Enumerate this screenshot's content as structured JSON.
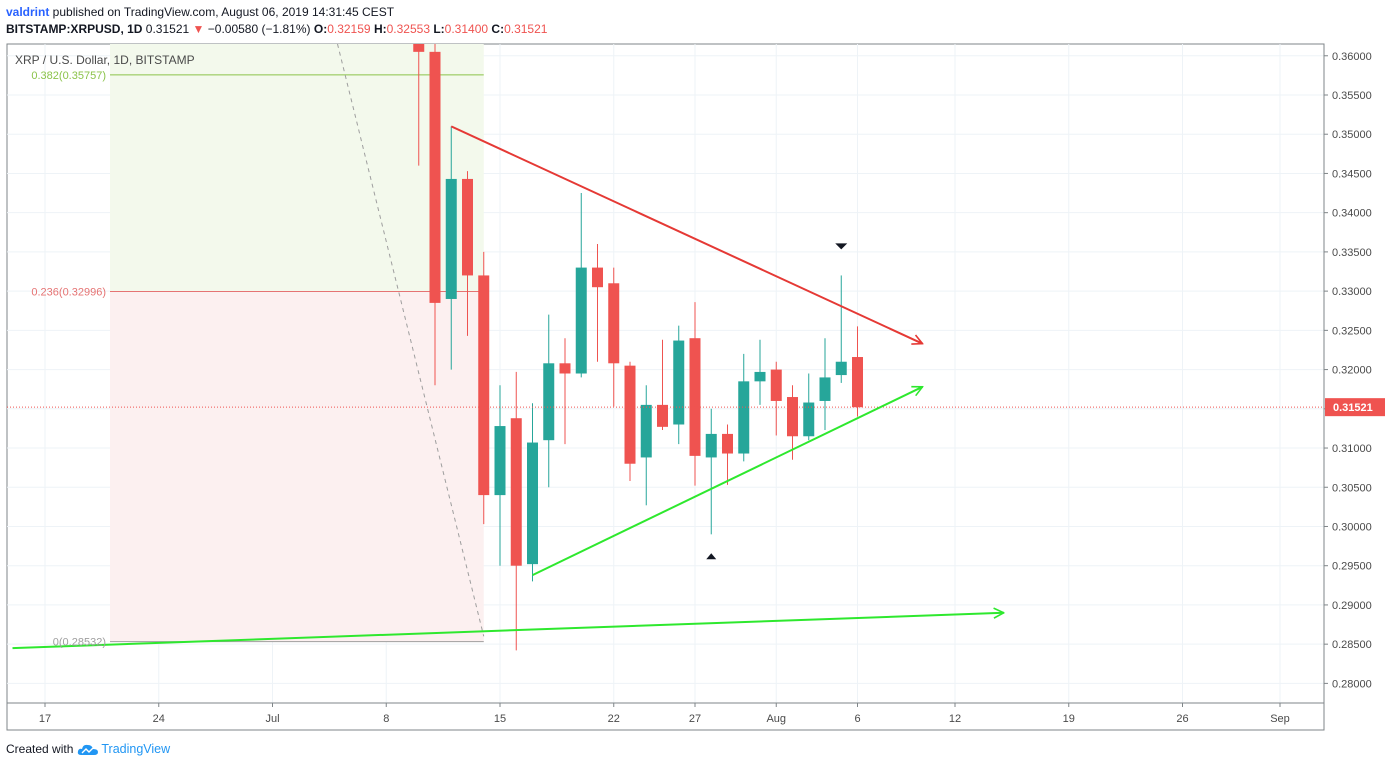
{
  "header": {
    "author": "valdrint",
    "published_text": " published on TradingView.com, August 06, 2019 14:31:45 CEST",
    "symbol": "BITSTAMP:XRPUSD, 1D",
    "last": "0.31521",
    "change": "−0.00580 (−1.81%)",
    "open_label": "O:",
    "open": "0.32159",
    "high_label": "H:",
    "high": "0.32553",
    "low_label": "L:",
    "low": "0.31400",
    "close_label": "C:",
    "close": "0.31521"
  },
  "footer": {
    "created_with": "Created with",
    "brand": "TradingView"
  },
  "colors": {
    "up": "#26a69a",
    "down": "#ef5350",
    "resistance": "#e53935",
    "support": "#2ee82e",
    "fib_top_fill": "#f3f9ec",
    "fib_bottom_fill": "#fcf0f0",
    "fib_382": "#8bc34a",
    "fib_236": "#e57373",
    "grid": "#eef3f7"
  },
  "chart_data": {
    "type": "candlestick",
    "title": "XRP / U.S. Dollar, 1D, BITSTAMP",
    "y_range": [
      0.2775,
      0.3615
    ],
    "y_ticks": [
      "0.36000",
      "0.35500",
      "0.35000",
      "0.34500",
      "0.34000",
      "0.33500",
      "0.33000",
      "0.32500",
      "0.32000",
      "0.31500",
      "0.31000",
      "0.30500",
      "0.30000",
      "0.29500",
      "0.29000",
      "0.28500",
      "0.28000"
    ],
    "x_ticks": [
      {
        "label": "17",
        "date": "2019-06-17"
      },
      {
        "label": "24",
        "date": "2019-06-24"
      },
      {
        "label": "Jul",
        "date": "2019-07-01"
      },
      {
        "label": "8",
        "date": "2019-07-08"
      },
      {
        "label": "15",
        "date": "2019-07-15"
      },
      {
        "label": "22",
        "date": "2019-07-22"
      },
      {
        "label": "27",
        "date": "2019-07-27"
      },
      {
        "label": "Aug",
        "date": "2019-08-01"
      },
      {
        "label": "6",
        "date": "2019-08-06"
      },
      {
        "label": "12",
        "date": "2019-08-12"
      },
      {
        "label": "19",
        "date": "2019-08-19"
      },
      {
        "label": "26",
        "date": "2019-08-26"
      },
      {
        "label": "Sep",
        "date": "2019-09-01"
      }
    ],
    "candles": [
      {
        "date": "2019-07-10",
        "o": 0.3705,
        "h": 0.374,
        "l": 0.346,
        "c": 0.3605
      },
      {
        "date": "2019-07-11",
        "o": 0.3605,
        "h": 0.365,
        "l": 0.318,
        "c": 0.3285
      },
      {
        "date": "2019-07-12",
        "o": 0.329,
        "h": 0.351,
        "l": 0.32,
        "c": 0.3443
      },
      {
        "date": "2019-07-13",
        "o": 0.3443,
        "h": 0.3453,
        "l": 0.3243,
        "c": 0.332
      },
      {
        "date": "2019-07-14",
        "o": 0.332,
        "h": 0.335,
        "l": 0.3003,
        "c": 0.304
      },
      {
        "date": "2019-07-15",
        "o": 0.304,
        "h": 0.318,
        "l": 0.295,
        "c": 0.3128
      },
      {
        "date": "2019-07-16",
        "o": 0.3138,
        "h": 0.3197,
        "l": 0.2842,
        "c": 0.295
      },
      {
        "date": "2019-07-17",
        "o": 0.2952,
        "h": 0.3157,
        "l": 0.293,
        "c": 0.3107
      },
      {
        "date": "2019-07-18",
        "o": 0.311,
        "h": 0.327,
        "l": 0.305,
        "c": 0.3208
      },
      {
        "date": "2019-07-19",
        "o": 0.3208,
        "h": 0.324,
        "l": 0.3105,
        "c": 0.3195
      },
      {
        "date": "2019-07-20",
        "o": 0.3195,
        "h": 0.3425,
        "l": 0.319,
        "c": 0.333
      },
      {
        "date": "2019-07-21",
        "o": 0.333,
        "h": 0.336,
        "l": 0.321,
        "c": 0.3305
      },
      {
        "date": "2019-07-22",
        "o": 0.331,
        "h": 0.333,
        "l": 0.3153,
        "c": 0.3208
      },
      {
        "date": "2019-07-23",
        "o": 0.3205,
        "h": 0.321,
        "l": 0.3058,
        "c": 0.308
      },
      {
        "date": "2019-07-24",
        "o": 0.3088,
        "h": 0.318,
        "l": 0.3027,
        "c": 0.3155
      },
      {
        "date": "2019-07-25",
        "o": 0.3155,
        "h": 0.3238,
        "l": 0.3123,
        "c": 0.3127
      },
      {
        "date": "2019-07-26",
        "o": 0.313,
        "h": 0.3256,
        "l": 0.3105,
        "c": 0.3237
      },
      {
        "date": "2019-07-27",
        "o": 0.324,
        "h": 0.3286,
        "l": 0.3052,
        "c": 0.309
      },
      {
        "date": "2019-07-28",
        "o": 0.3088,
        "h": 0.315,
        "l": 0.299,
        "c": 0.3118
      },
      {
        "date": "2019-07-29",
        "o": 0.3118,
        "h": 0.313,
        "l": 0.3053,
        "c": 0.3093
      },
      {
        "date": "2019-07-30",
        "o": 0.3093,
        "h": 0.322,
        "l": 0.3083,
        "c": 0.3185
      },
      {
        "date": "2019-07-31",
        "o": 0.3185,
        "h": 0.3238,
        "l": 0.3155,
        "c": 0.3197
      },
      {
        "date": "2019-08-01",
        "o": 0.32,
        "h": 0.321,
        "l": 0.3116,
        "c": 0.316
      },
      {
        "date": "2019-08-02",
        "o": 0.3165,
        "h": 0.318,
        "l": 0.3085,
        "c": 0.3115
      },
      {
        "date": "2019-08-03",
        "o": 0.3115,
        "h": 0.3195,
        "l": 0.311,
        "c": 0.3158
      },
      {
        "date": "2019-08-04",
        "o": 0.316,
        "h": 0.324,
        "l": 0.3123,
        "c": 0.319
      },
      {
        "date": "2019-08-05",
        "o": 0.3193,
        "h": 0.332,
        "l": 0.3183,
        "c": 0.321
      },
      {
        "date": "2019-08-06",
        "o": 0.3216,
        "h": 0.3255,
        "l": 0.314,
        "c": 0.3152
      }
    ],
    "last_price": {
      "value": 0.31521,
      "label": "0.31521"
    },
    "fibonacci": {
      "levels": [
        {
          "ratio": "0.382",
          "price": 0.35757,
          "label": "0.382(0.35757)"
        },
        {
          "ratio": "0.236",
          "price": 0.32996,
          "label": "0.236(0.32996)"
        },
        {
          "ratio": "0",
          "price": 0.28532,
          "label": "0(0.28532)"
        }
      ],
      "start_date": "2019-06-21",
      "end_date": "2019-07-14"
    },
    "trendlines": [
      {
        "name": "resistance",
        "from": {
          "date": "2019-07-12",
          "price": 0.351
        },
        "to": {
          "date": "2019-08-10",
          "price": 0.3233
        },
        "color": "#e53935"
      },
      {
        "name": "support",
        "from": {
          "date": "2019-07-17",
          "price": 0.2938
        },
        "to": {
          "date": "2019-08-10",
          "price": 0.3178
        },
        "color": "#2ee82e"
      },
      {
        "name": "long-support",
        "from": {
          "date": "2019-06-15",
          "price": 0.2845
        },
        "to": {
          "date": "2019-08-15",
          "price": 0.289
        },
        "color": "#2ee82e"
      }
    ],
    "dashed_line": {
      "from": {
        "date": "2019-07-05",
        "price": 0.3615
      },
      "to": {
        "date": "2019-07-14",
        "price": 0.286
      }
    },
    "markers": [
      {
        "type": "down-arrow",
        "date": "2019-08-05",
        "price": 0.3357
      },
      {
        "type": "up-arrow",
        "date": "2019-07-28",
        "price": 0.2962
      }
    ]
  }
}
